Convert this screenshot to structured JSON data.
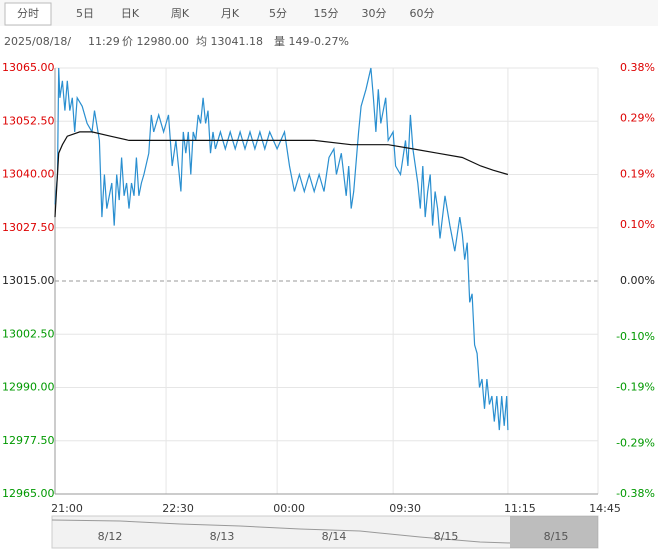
{
  "tabs": [
    "分时",
    "5日",
    "日K",
    "周K",
    "月K",
    "5分",
    "15分",
    "30分",
    "60分"
  ],
  "info": [
    "2025/08/18/",
    "11:29",
    "价 12980.00",
    "均 13041.18",
    "量 149",
    "-0.27%"
  ],
  "chart_data": {
    "type": "line",
    "xlim": [
      0,
      440
    ],
    "xticks": [
      {
        "value": 0,
        "label": "21:00"
      },
      {
        "value": 90,
        "label": "22:30"
      },
      {
        "value": 180,
        "label": "00:00"
      },
      {
        "value": 274,
        "label": "09:30"
      },
      {
        "value": 367,
        "label": "11:15"
      },
      {
        "value": 440,
        "label": "14:45"
      }
    ],
    "ylim": [
      12965,
      13065
    ],
    "yticks": [
      {
        "value": 13065,
        "label": "13065.00"
      },
      {
        "value": 13052.5,
        "label": "13052.50"
      },
      {
        "value": 13040,
        "label": "13040.00"
      },
      {
        "value": 13027.5,
        "label": "13027.50"
      },
      {
        "value": 13015,
        "label": "13015.00"
      },
      {
        "value": 13002.5,
        "label": "13002.50"
      },
      {
        "value": 12990,
        "label": "12990.00"
      },
      {
        "value": 12977.5,
        "label": "12977.50"
      },
      {
        "value": 12965,
        "label": "12965.00"
      }
    ],
    "y2lim": [
      -0.38,
      0.38
    ],
    "y2ticks": [
      {
        "value": 0.38,
        "label": "0.38%"
      },
      {
        "value": 0.29,
        "label": "0.29%"
      },
      {
        "value": 0.19,
        "label": "0.19%"
      },
      {
        "value": 0.1,
        "label": "0.10%"
      },
      {
        "value": 0,
        "label": "0.00%"
      },
      {
        "value": -0.1,
        "label": "-0.10%"
      },
      {
        "value": -0.19,
        "label": "-0.19%"
      },
      {
        "value": -0.29,
        "label": "-0.29%"
      },
      {
        "value": -0.38,
        "label": "-0.38%"
      }
    ],
    "grid": true,
    "series": [
      {
        "color": "#2a8fd0",
        "x": [
          0,
          2,
          3,
          4,
          6,
          8,
          10,
          12,
          14,
          16,
          18,
          22,
          26,
          30,
          32,
          36,
          38,
          40,
          42,
          44,
          46,
          48,
          50,
          52,
          54,
          56,
          58,
          60,
          62,
          64,
          66,
          68,
          70,
          72,
          76,
          78,
          80,
          84,
          88,
          92,
          95,
          98,
          102,
          104,
          106,
          108,
          110,
          112,
          114,
          116,
          118,
          120,
          122,
          124,
          126,
          128,
          130,
          134,
          138,
          142,
          146,
          150,
          154,
          158,
          162,
          166,
          170,
          174,
          180,
          186,
          190,
          194,
          198,
          202,
          206,
          210,
          214,
          218,
          222,
          226,
          228,
          232,
          236,
          238,
          240,
          242,
          246,
          248,
          252,
          256,
          258,
          260,
          262,
          264,
          268,
          270,
          274,
          276,
          280,
          284,
          286,
          288,
          290,
          294,
          296,
          298,
          300,
          302,
          304,
          306,
          308,
          310,
          312,
          316,
          320,
          324,
          328,
          330,
          332,
          334,
          336,
          338,
          340,
          342,
          344,
          346,
          348,
          350,
          352,
          354,
          356,
          358,
          360,
          362,
          364,
          366,
          367
        ],
        "values": [
          13033,
          13040,
          13065,
          13058,
          13062,
          13055,
          13062,
          13055,
          13058,
          13050,
          13058,
          13056,
          13052,
          13050,
          13055,
          13048,
          13030,
          13040,
          13032,
          13035,
          13038,
          13028,
          13040,
          13034,
          13044,
          13035,
          13038,
          13032,
          13038,
          13035,
          13044,
          13035,
          13038,
          13040,
          13045,
          13054,
          13050,
          13054,
          13050,
          13054,
          13042,
          13048,
          13036,
          13050,
          13045,
          13050,
          13040,
          13050,
          13048,
          13054,
          13052,
          13058,
          13052,
          13055,
          13045,
          13050,
          13046,
          13050,
          13046,
          13050,
          13046,
          13050,
          13046,
          13050,
          13046,
          13050,
          13046,
          13050,
          13046,
          13050,
          13042,
          13036,
          13040,
          13036,
          13040,
          13036,
          13040,
          13036,
          13044,
          13046,
          13040,
          13045,
          13035,
          13042,
          13032,
          13036,
          13050,
          13056,
          13060,
          13065,
          13058,
          13050,
          13060,
          13052,
          13058,
          13048,
          13050,
          13042,
          13040,
          13048,
          13042,
          13054,
          13046,
          13038,
          13032,
          13042,
          13030,
          13036,
          13040,
          13028,
          13036,
          13032,
          13025,
          13035,
          13028,
          13022,
          13030,
          13026,
          13020,
          13024,
          13010,
          13012,
          13000,
          12998,
          12990,
          12992,
          12985,
          12992,
          12986,
          12988,
          12982,
          12988,
          12980,
          12988,
          12981,
          12988,
          12980
        ]
      },
      {
        "color": "#111111",
        "x": [
          0,
          3,
          6,
          10,
          20,
          30,
          45,
          60,
          90,
          120,
          150,
          180,
          210,
          240,
          270,
          290,
          310,
          330,
          345,
          355,
          367
        ],
        "values": [
          13030,
          13045,
          13047,
          13049,
          13050,
          13050,
          13049,
          13048,
          13048,
          13048,
          13048,
          13048,
          13048,
          13047,
          13047,
          13046,
          13045,
          13044,
          13042,
          13041,
          13040
        ]
      }
    ]
  },
  "navigator": {
    "labels": [
      "8/12",
      "8/13",
      "8/14",
      "8/15",
      "8/15"
    ]
  }
}
